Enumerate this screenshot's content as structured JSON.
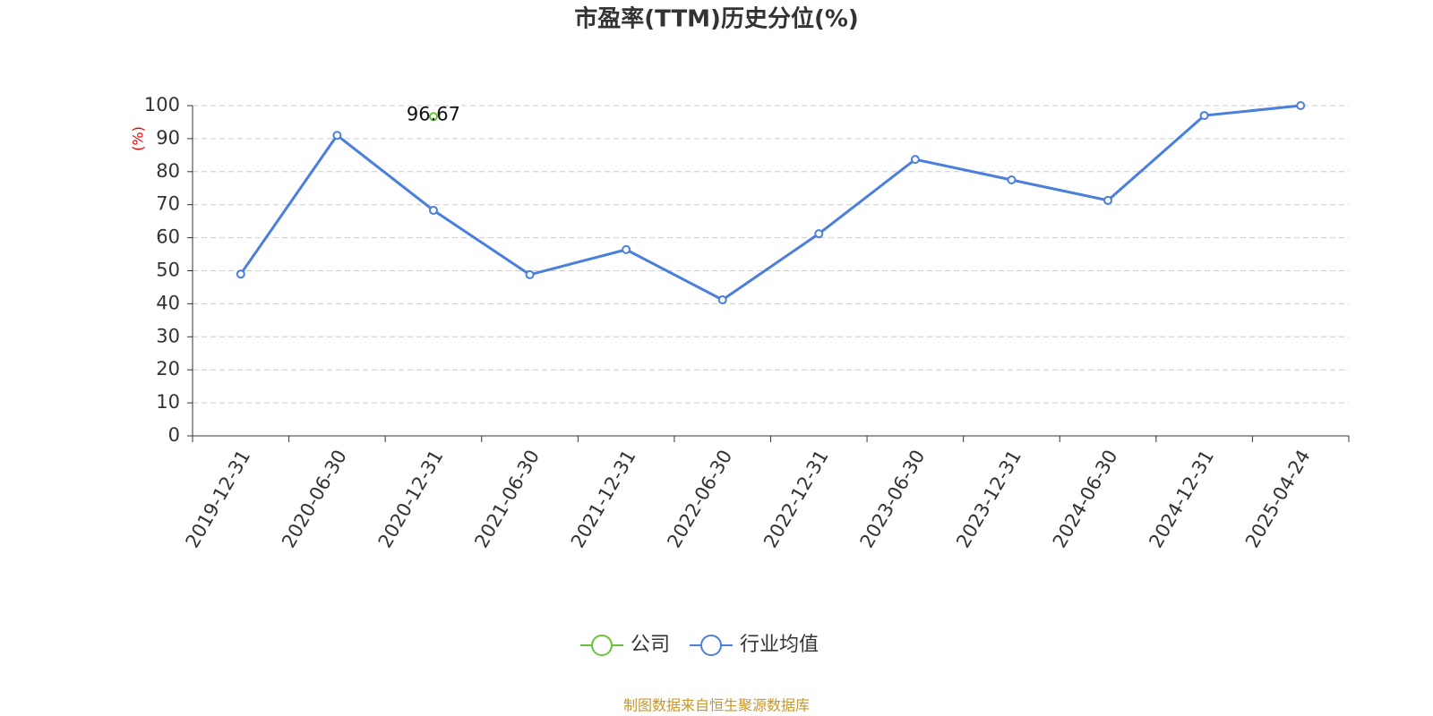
{
  "chart_data": {
    "type": "line",
    "title": "市盈率(TTM)历史分位(%)",
    "ylabel": "(%)",
    "categories": [
      "2019-12-31",
      "2020-06-30",
      "2020-12-31",
      "2021-06-30",
      "2021-12-31",
      "2022-06-30",
      "2022-12-31",
      "2023-06-30",
      "2023-12-31",
      "2024-06-30",
      "2024-12-31",
      "2025-04-24"
    ],
    "series": [
      {
        "name": "公司",
        "color": "#67c23a",
        "labels": true,
        "values": [
          null,
          null,
          96.67,
          null,
          null,
          null,
          null,
          null,
          null,
          null,
          null,
          null
        ]
      },
      {
        "name": "行业均值",
        "color": "#4a7fdc",
        "labels": false,
        "values": [
          49,
          91,
          68.3,
          48.8,
          56.4,
          41.2,
          61.2,
          83.7,
          77.5,
          71.3,
          97,
          100
        ]
      }
    ],
    "ylim": [
      0,
      100
    ],
    "yticks": [
      0,
      10,
      20,
      30,
      40,
      50,
      60,
      70,
      80,
      90,
      100
    ],
    "grid": true,
    "source": "制图数据来自恒生聚源数据库"
  }
}
